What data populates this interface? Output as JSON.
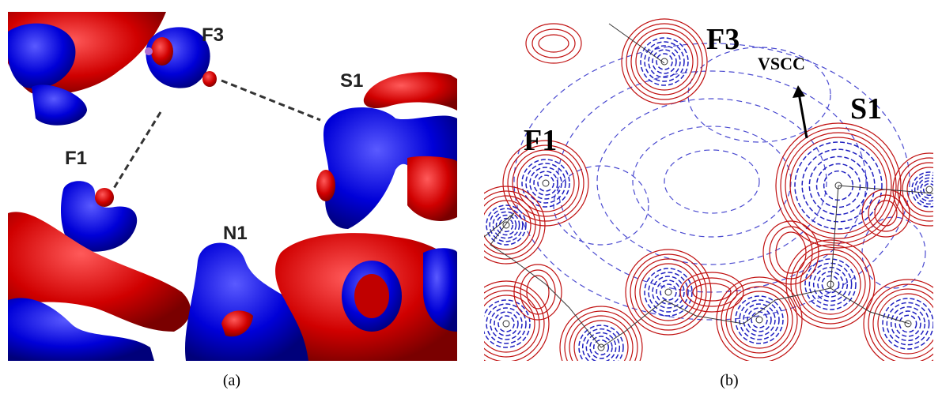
{
  "panels": [
    {
      "caption": "(a)",
      "labels": [
        "F3",
        "S1",
        "F1",
        "N1"
      ]
    },
    {
      "caption": "(b)",
      "labels": [
        "F3",
        "VSCC",
        "S1",
        "F1"
      ]
    }
  ]
}
